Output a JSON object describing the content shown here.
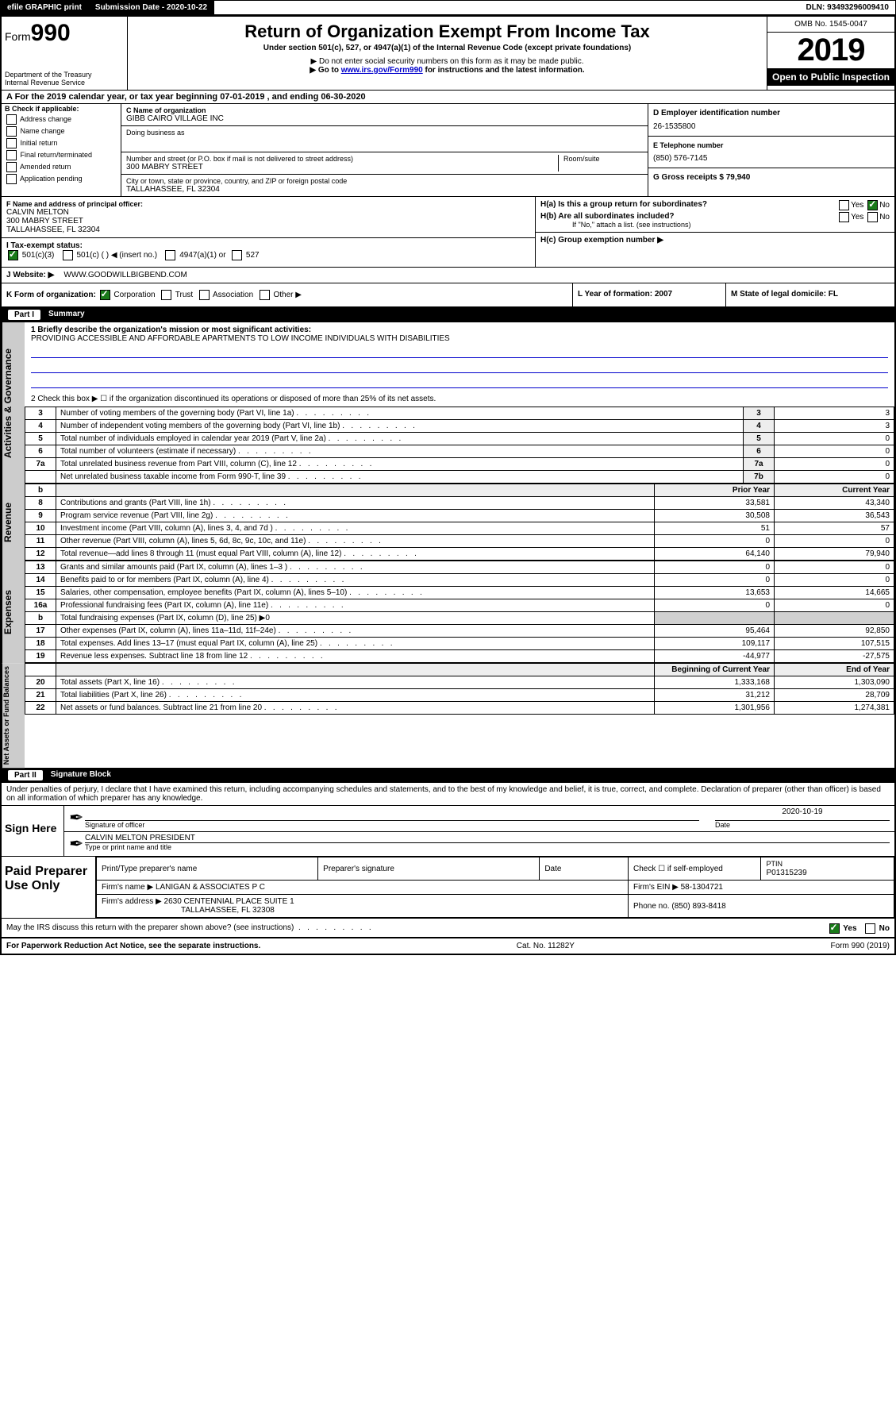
{
  "topbar": {
    "efile": "efile GRAPHIC print",
    "submission_label": "Submission Date - 2020-10-22",
    "dln_label": "DLN: 93493296009410"
  },
  "header": {
    "form_prefix": "Form",
    "form_num": "990",
    "dept1": "Department of the Treasury",
    "dept2": "Internal Revenue Service",
    "title": "Return of Organization Exempt From Income Tax",
    "subtitle": "Under section 501(c), 527, or 4947(a)(1) of the Internal Revenue Code (except private foundations)",
    "note1": "▶ Do not enter social security numbers on this form as it may be made public.",
    "note2_pre": "▶ Go to ",
    "note2_link": "www.irs.gov/Form990",
    "note2_post": " for instructions and the latest information.",
    "omb": "OMB No. 1545-0047",
    "year": "2019",
    "open": "Open to Public Inspection"
  },
  "rowA": "A For the 2019 calendar year, or tax year beginning 07-01-2019    , and ending 06-30-2020",
  "colB": {
    "label": "B Check if applicable:",
    "items": [
      "Address change",
      "Name change",
      "Initial return",
      "Final return/terminated",
      "Amended return",
      "Application pending"
    ]
  },
  "colC": {
    "name_label": "C Name of organization",
    "name": "GIBB CAIRO VILLAGE INC",
    "dba_label": "Doing business as",
    "street_label": "Number and street (or P.O. box if mail is not delivered to street address)",
    "room_label": "Room/suite",
    "street": "300 MABRY STREET",
    "city_label": "City or town, state or province, country, and ZIP or foreign postal code",
    "city": "TALLAHASSEE, FL  32304"
  },
  "colD": {
    "label": "D Employer identification number",
    "value": "26-1535800"
  },
  "colE": {
    "label": "E Telephone number",
    "value": "(850) 576-7145"
  },
  "colG": {
    "label": "G Gross receipts $ 79,940"
  },
  "rowF": {
    "label": "F  Name and address of principal officer:",
    "name": "CALVIN MELTON",
    "street": "300 MABRY STREET",
    "city": "TALLAHASSEE, FL  32304"
  },
  "rowH": {
    "ha": "H(a)  Is this a group return for subordinates?",
    "hb": "H(b)  Are all subordinates included?",
    "hb_note": "If \"No,\" attach a list. (see instructions)",
    "hc": "H(c)  Group exemption number ▶",
    "yes": "Yes",
    "no": "No"
  },
  "rowI": {
    "label": "I    Tax-exempt status:",
    "opt1": "501(c)(3)",
    "opt2": "501(c) (   ) ◀ (insert no.)",
    "opt3": "4947(a)(1) or",
    "opt4": "527"
  },
  "rowJ": {
    "label": "J    Website: ▶",
    "value": "  WWW.GOODWILLBIGBEND.COM"
  },
  "rowK": {
    "label": "K Form of organization:",
    "corp": "Corporation",
    "trust": "Trust",
    "assoc": "Association",
    "other": "Other ▶"
  },
  "rowL": {
    "label": "L Year of formation: 2007"
  },
  "rowM": {
    "label": "M State of legal domicile: FL"
  },
  "part1": {
    "header": "Summary",
    "partnum": "Part I",
    "line1_label": "1  Briefly describe the organization's mission or most significant activities:",
    "line1_value": "PROVIDING ACCESSIBLE AND AFFORDABLE APARTMENTS TO LOW INCOME INDIVIDUALS WITH DISABILITIES",
    "line2": "2   Check this box ▶ ☐  if the organization discontinued its operations or disposed of more than 25% of its net assets.",
    "vtab1": "Activities & Governance",
    "vtab2": "Revenue",
    "vtab3": "Expenses",
    "vtab4": "Net Assets or Fund Balances",
    "rows_gov": [
      {
        "n": "3",
        "t": "Number of voting members of the governing body (Part VI, line 1a)",
        "c": "3",
        "v": "3"
      },
      {
        "n": "4",
        "t": "Number of independent voting members of the governing body (Part VI, line 1b)",
        "c": "4",
        "v": "3"
      },
      {
        "n": "5",
        "t": "Total number of individuals employed in calendar year 2019 (Part V, line 2a)",
        "c": "5",
        "v": "0"
      },
      {
        "n": "6",
        "t": "Total number of volunteers (estimate if necessary)",
        "c": "6",
        "v": "0"
      },
      {
        "n": "7a",
        "t": "Total unrelated business revenue from Part VIII, column (C), line 12",
        "c": "7a",
        "v": "0"
      },
      {
        "n": "",
        "t": "Net unrelated business taxable income from Form 990-T, line 39",
        "c": "7b",
        "v": "0"
      }
    ],
    "col_prior": "Prior Year",
    "col_current": "Current Year",
    "rows_rev": [
      {
        "n": "8",
        "t": "Contributions and grants (Part VIII, line 1h)",
        "p": "33,581",
        "c": "43,340"
      },
      {
        "n": "9",
        "t": "Program service revenue (Part VIII, line 2g)",
        "p": "30,508",
        "c": "36,543"
      },
      {
        "n": "10",
        "t": "Investment income (Part VIII, column (A), lines 3, 4, and 7d )",
        "p": "51",
        "c": "57"
      },
      {
        "n": "11",
        "t": "Other revenue (Part VIII, column (A), lines 5, 6d, 8c, 9c, 10c, and 11e)",
        "p": "0",
        "c": "0"
      },
      {
        "n": "12",
        "t": "Total revenue—add lines 8 through 11 (must equal Part VIII, column (A), line 12)",
        "p": "64,140",
        "c": "79,940"
      }
    ],
    "rows_exp": [
      {
        "n": "13",
        "t": "Grants and similar amounts paid (Part IX, column (A), lines 1–3 )",
        "p": "0",
        "c": "0"
      },
      {
        "n": "14",
        "t": "Benefits paid to or for members (Part IX, column (A), line 4)",
        "p": "0",
        "c": "0"
      },
      {
        "n": "15",
        "t": "Salaries, other compensation, employee benefits (Part IX, column (A), lines 5–10)",
        "p": "13,653",
        "c": "14,665"
      },
      {
        "n": "16a",
        "t": "Professional fundraising fees (Part IX, column (A), line 11e)",
        "p": "0",
        "c": "0"
      },
      {
        "n": "b",
        "t": "Total fundraising expenses (Part IX, column (D), line 25) ▶0",
        "p": "",
        "c": "",
        "grey": true
      },
      {
        "n": "17",
        "t": "Other expenses (Part IX, column (A), lines 11a–11d, 11f–24e)",
        "p": "95,464",
        "c": "92,850"
      },
      {
        "n": "18",
        "t": "Total expenses. Add lines 13–17 (must equal Part IX, column (A), line 25)",
        "p": "109,117",
        "c": "107,515"
      },
      {
        "n": "19",
        "t": "Revenue less expenses. Subtract line 18 from line 12",
        "p": "-44,977",
        "c": "-27,575"
      }
    ],
    "col_begin": "Beginning of Current Year",
    "col_end": "End of Year",
    "rows_net": [
      {
        "n": "20",
        "t": "Total assets (Part X, line 16)",
        "p": "1,333,168",
        "c": "1,303,090"
      },
      {
        "n": "21",
        "t": "Total liabilities (Part X, line 26)",
        "p": "31,212",
        "c": "28,709"
      },
      {
        "n": "22",
        "t": "Net assets or fund balances. Subtract line 21 from line 20",
        "p": "1,301,956",
        "c": "1,274,381"
      }
    ]
  },
  "part2": {
    "partnum": "Part II",
    "header": "Signature Block",
    "declaration": "Under penalties of perjury, I declare that I have examined this return, including accompanying schedules and statements, and to the best of my knowledge and belief, it is true, correct, and complete. Declaration of preparer (other than officer) is based on all information of which preparer has any knowledge.",
    "sign_here": "Sign Here",
    "sig_officer": "Signature of officer",
    "sig_date_val": "2020-10-19",
    "sig_date": "Date",
    "sig_name": "CALVIN MELTON  PRESIDENT",
    "sig_name_label": "Type or print name and title",
    "paid": "Paid Preparer Use Only",
    "prep_name_label": "Print/Type preparer's name",
    "prep_sig_label": "Preparer's signature",
    "date_label": "Date",
    "check_label": "Check ☐ if self-employed",
    "ptin_label": "PTIN",
    "ptin": "P01315239",
    "firm_name_label": "Firm's name    ▶",
    "firm_name": "LANIGAN & ASSOCIATES P C",
    "firm_ein_label": "Firm's EIN ▶",
    "firm_ein": "58-1304721",
    "firm_addr_label": "Firm's address ▶",
    "firm_addr1": "2630 CENTENNIAL PLACE SUITE 1",
    "firm_addr2": "TALLAHASSEE, FL  32308",
    "phone_label": "Phone no.",
    "phone": "(850) 893-8418",
    "discuss": "May the IRS discuss this return with the preparer shown above? (see instructions)",
    "yes": "Yes",
    "no": "No"
  },
  "footer": {
    "left": "For Paperwork Reduction Act Notice, see the separate instructions.",
    "mid": "Cat. No. 11282Y",
    "right": "Form 990 (2019)"
  }
}
